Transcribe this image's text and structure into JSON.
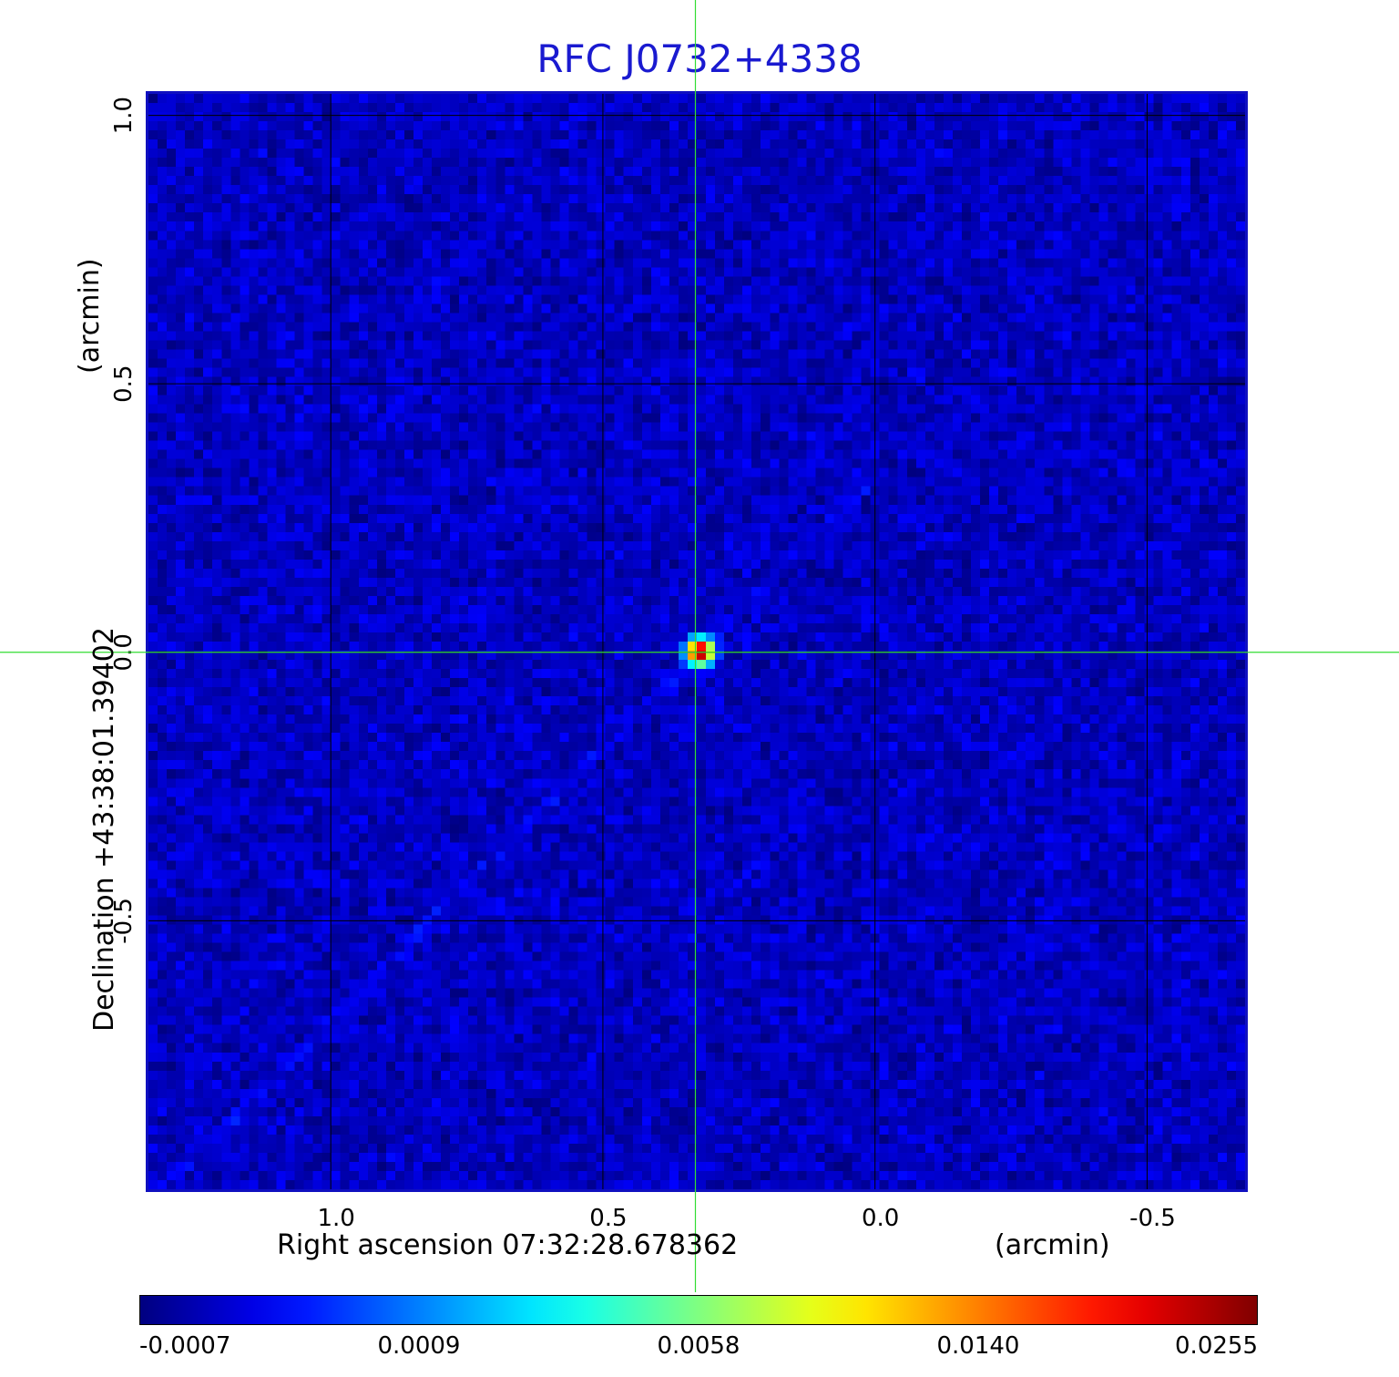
{
  "title": "RFC J0732+4338",
  "colors": {
    "title": "#1a1ad0",
    "frame": "#1010c0",
    "grid": "#000000",
    "crosshair": "#33dd33"
  },
  "chart_data": {
    "type": "heatmap",
    "title": "RFC J0732+4338",
    "colormap": "jet",
    "x_axis": {
      "label": "Right ascension  07:32:28.678362",
      "unit_label": "(arcmin)",
      "ticks": [
        1.0,
        0.5,
        0.0,
        -0.5
      ],
      "tick_labels": [
        "1.0",
        "0.5",
        "0.0",
        "-0.5"
      ],
      "range": [
        1.335,
        -0.68
      ]
    },
    "y_axis": {
      "label": "Declination  +43:38:01.39402",
      "unit_label": "(arcmin)",
      "ticks": [
        1.0,
        0.5,
        0.0,
        -0.5
      ],
      "tick_labels": [
        "1.0",
        "0.5",
        "0.0",
        "-0.5"
      ],
      "range": [
        -1.0,
        1.04
      ]
    },
    "grid": true,
    "crosshair": {
      "x": 0.33,
      "y": 0.0
    },
    "source_peak": {
      "x": 0.33,
      "y": 0.01,
      "value": 0.0255
    },
    "background_level": -0.0003,
    "colorbar": {
      "tick_values": [
        -0.0007,
        0.0009,
        0.0058,
        0.014,
        0.0255
      ],
      "tick_labels": [
        "-0.0007",
        "0.0009",
        "0.0058",
        "0.0140",
        "0.0255"
      ],
      "min": -0.0007,
      "max": 0.0255
    }
  }
}
